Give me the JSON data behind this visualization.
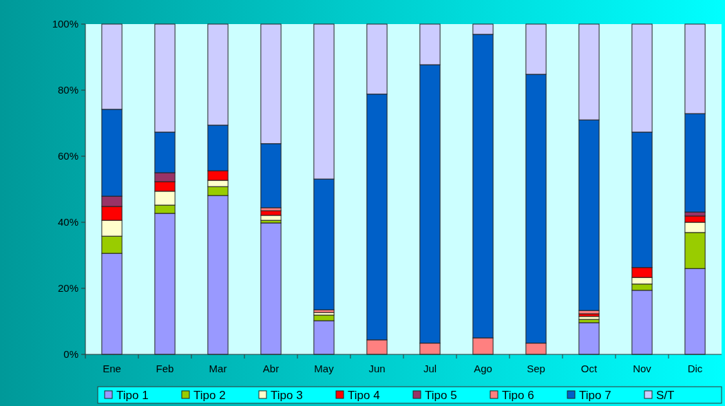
{
  "chart_data": {
    "type": "bar",
    "stacked": true,
    "categories": [
      "Ene",
      "Feb",
      "Mar",
      "Abr",
      "May",
      "Jun",
      "Jul",
      "Ago",
      "Sep",
      "Oct",
      "Nov",
      "Dic"
    ],
    "ylim": [
      0,
      100
    ],
    "yticks": [
      {
        "value": 0,
        "label": "0%"
      },
      {
        "value": 20,
        "label": "20%"
      },
      {
        "value": 40,
        "label": "40%"
      },
      {
        "value": 60,
        "label": "60%"
      },
      {
        "value": 80,
        "label": "80%"
      },
      {
        "value": 100,
        "label": "100%"
      }
    ],
    "grid": false,
    "legend": "bottom",
    "series": [
      {
        "name": "Tipo 1",
        "color": "#9999ff",
        "values": [
          30.6,
          42.7,
          48.1,
          39.8,
          10.2,
          0,
          0,
          0,
          0,
          9.6,
          19.4,
          26.0
        ]
      },
      {
        "name": "Tipo 2",
        "color": "#99cc00",
        "values": [
          5.2,
          2.5,
          2.7,
          0.8,
          1.7,
          0,
          0,
          0,
          0,
          1.0,
          1.9,
          10.9
        ]
      },
      {
        "name": "Tipo 3",
        "color": "#ffffcc",
        "values": [
          4.8,
          4.2,
          1.9,
          1.5,
          0.8,
          0,
          0,
          0,
          0,
          0.9,
          2.0,
          3.1
        ]
      },
      {
        "name": "Tipo 4",
        "color": "#ff0000",
        "values": [
          4.2,
          2.9,
          2.9,
          1.4,
          0,
          0,
          0,
          0,
          0,
          0.8,
          3.0,
          1.9
        ]
      },
      {
        "name": "Tipo 5",
        "color": "#993366",
        "values": [
          3.1,
          2.7,
          0,
          0,
          0,
          0,
          0,
          0,
          0,
          0,
          0,
          1.2
        ]
      },
      {
        "name": "Tipo 6",
        "color": "#ff8080",
        "values": [
          0,
          0,
          0,
          0.9,
          0.8,
          4.4,
          3.4,
          5.0,
          3.4,
          1.0,
          0,
          0
        ]
      },
      {
        "name": "Tipo 7",
        "color": "#0060c8",
        "values": [
          26.3,
          12.3,
          13.8,
          19.4,
          39.6,
          74.4,
          84.3,
          91.9,
          81.4,
          57.7,
          41.0,
          29.8
        ]
      },
      {
        "name": "S/T",
        "color": "#ccccff",
        "values": [
          25.8,
          32.7,
          30.6,
          36.2,
          46.9,
          21.2,
          12.3,
          3.1,
          15.2,
          29.0,
          32.7,
          27.1
        ]
      }
    ]
  }
}
